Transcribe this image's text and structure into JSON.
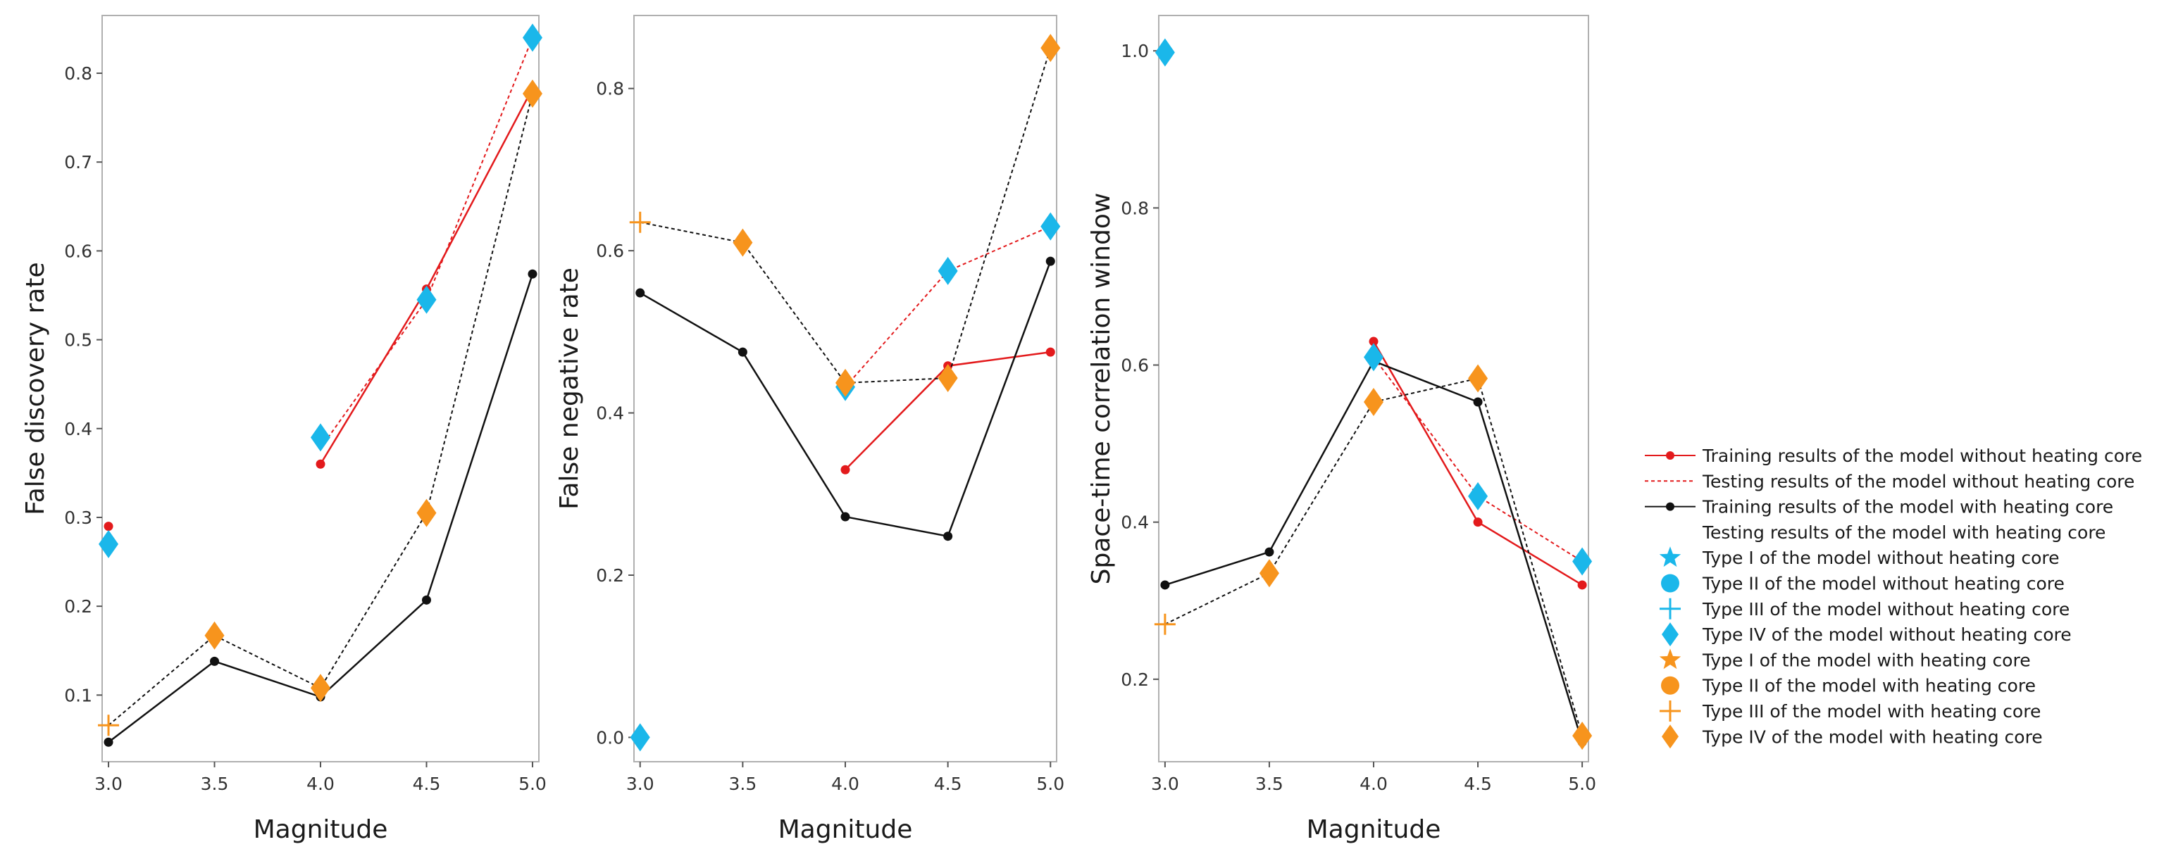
{
  "colors": {
    "red": "#e31a1c",
    "black": "#111111",
    "cyan": "#1ab7ea",
    "orange": "#f7941d",
    "panel_border": "#b0b0b0"
  },
  "chart_data": [
    {
      "type": "line",
      "xlabel": "Magnitude",
      "ylabel": "False discovery rate",
      "x_ticks": [
        "3.0",
        "3.5",
        "4.0",
        "4.5",
        "5.0"
      ],
      "y_ticks": [
        "0.1",
        "0.2",
        "0.3",
        "0.4",
        "0.5",
        "0.6",
        "0.7",
        "0.8"
      ],
      "xlim": [
        2.97,
        5.03
      ],
      "ylim": [
        0.025,
        0.865
      ],
      "series": [
        {
          "name": "Training results of the model without heating core",
          "style": "train-red",
          "x": [
            4.0,
            4.5,
            5.0
          ],
          "y": [
            0.36,
            0.557,
            0.783
          ],
          "isolated": [
            {
              "x": 3.0,
              "y": 0.29
            }
          ]
        },
        {
          "name": "Testing results of the model without heating core",
          "style": "test-red",
          "x": [
            4.0,
            4.5,
            5.0
          ],
          "y": [
            0.378,
            0.545,
            0.84
          ]
        },
        {
          "name": "Training results of the model with heating core",
          "style": "train-black",
          "x": [
            3.0,
            3.5,
            4.0,
            4.5,
            5.0
          ],
          "y": [
            0.047,
            0.138,
            0.098,
            0.207,
            0.574
          ]
        },
        {
          "name": "Testing results of the model with heating core",
          "style": "test-black",
          "x": [
            3.0,
            3.5,
            4.0,
            4.5,
            5.0
          ],
          "y": [
            0.066,
            0.167,
            0.108,
            0.305,
            0.777
          ]
        }
      ],
      "markers": [
        {
          "type": "diamond",
          "color": "cyan",
          "x": 3.0,
          "y": 0.27
        },
        {
          "type": "diamond",
          "color": "cyan",
          "x": 4.0,
          "y": 0.39
        },
        {
          "type": "diamond",
          "color": "cyan",
          "x": 4.5,
          "y": 0.545
        },
        {
          "type": "diamond",
          "color": "cyan",
          "x": 5.0,
          "y": 0.84
        },
        {
          "type": "plus",
          "color": "orange",
          "x": 3.0,
          "y": 0.066
        },
        {
          "type": "diamond",
          "color": "orange",
          "x": 3.5,
          "y": 0.167
        },
        {
          "type": "diamond",
          "color": "orange",
          "x": 4.0,
          "y": 0.108
        },
        {
          "type": "diamond",
          "color": "orange",
          "x": 4.5,
          "y": 0.305
        },
        {
          "type": "diamond",
          "color": "orange",
          "x": 5.0,
          "y": 0.777
        }
      ]
    },
    {
      "type": "line",
      "xlabel": "Magnitude",
      "ylabel": "False negative rate",
      "x_ticks": [
        "3.0",
        "3.5",
        "4.0",
        "4.5",
        "5.0"
      ],
      "y_ticks": [
        "0.0",
        "0.2",
        "0.4",
        "0.6",
        "0.8"
      ],
      "xlim": [
        2.97,
        5.03
      ],
      "ylim": [
        -0.03,
        0.89
      ],
      "series": [
        {
          "name": "Training results of the model without heating core",
          "style": "train-red",
          "x": [
            4.0,
            4.5,
            5.0
          ],
          "y": [
            0.33,
            0.458,
            0.475
          ],
          "isolated": [
            {
              "x": 3.0,
              "y": 0.0
            }
          ]
        },
        {
          "name": "Testing results of the model without heating core",
          "style": "test-red",
          "x": [
            4.0,
            4.5,
            5.0
          ],
          "y": [
            0.432,
            0.575,
            0.63
          ]
        },
        {
          "name": "Training results of the model with heating core",
          "style": "train-black",
          "x": [
            3.0,
            3.5,
            4.0,
            4.5,
            5.0
          ],
          "y": [
            0.548,
            0.475,
            0.272,
            0.248,
            0.587
          ]
        },
        {
          "name": "Testing results of the model with heating core",
          "style": "test-black",
          "x": [
            3.0,
            3.5,
            4.0,
            4.5,
            5.0
          ],
          "y": [
            0.635,
            0.61,
            0.437,
            0.443,
            0.85
          ]
        }
      ],
      "markers": [
        {
          "type": "diamond",
          "color": "cyan",
          "x": 3.0,
          "y": 0.0
        },
        {
          "type": "diamond",
          "color": "cyan",
          "x": 4.0,
          "y": 0.432
        },
        {
          "type": "diamond",
          "color": "cyan",
          "x": 4.5,
          "y": 0.575
        },
        {
          "type": "diamond",
          "color": "cyan",
          "x": 5.0,
          "y": 0.63
        },
        {
          "type": "plus",
          "color": "orange",
          "x": 3.0,
          "y": 0.635
        },
        {
          "type": "diamond",
          "color": "orange",
          "x": 3.5,
          "y": 0.61
        },
        {
          "type": "diamond",
          "color": "orange",
          "x": 4.0,
          "y": 0.437
        },
        {
          "type": "diamond",
          "color": "orange",
          "x": 4.5,
          "y": 0.443
        },
        {
          "type": "diamond",
          "color": "orange",
          "x": 5.0,
          "y": 0.85
        }
      ]
    },
    {
      "type": "line",
      "xlabel": "Magnitude",
      "ylabel": "Space-time correlation window",
      "x_ticks": [
        "3.0",
        "3.5",
        "4.0",
        "4.5",
        "5.0"
      ],
      "y_ticks": [
        "0.2",
        "0.4",
        "0.6",
        "0.8",
        "1.0"
      ],
      "xlim": [
        2.97,
        5.03
      ],
      "ylim": [
        0.095,
        1.045
      ],
      "series": [
        {
          "name": "Training results of the model without heating core",
          "style": "train-red",
          "x": [
            3.0,
            4.0,
            4.5,
            5.0
          ],
          "y": [
            0.998,
            0.63,
            0.4,
            0.32
          ],
          "line_from": 1
        },
        {
          "name": "Testing results of the model without heating core",
          "style": "test-red",
          "x": [
            4.0,
            4.5,
            5.0
          ],
          "y": [
            0.61,
            0.433,
            0.35
          ]
        },
        {
          "name": "Training results of the model with heating core",
          "style": "train-black",
          "x": [
            3.0,
            3.5,
            4.0,
            4.5,
            5.0
          ],
          "y": [
            0.32,
            0.362,
            0.605,
            0.553,
            0.12
          ]
        },
        {
          "name": "Testing results of the model with heating core",
          "style": "test-black",
          "x": [
            3.0,
            3.5,
            4.0,
            4.5,
            5.0
          ],
          "y": [
            0.27,
            0.335,
            0.553,
            0.583,
            0.128
          ]
        }
      ],
      "markers": [
        {
          "type": "diamond",
          "color": "cyan",
          "x": 3.0,
          "y": 0.998
        },
        {
          "type": "diamond",
          "color": "cyan",
          "x": 4.0,
          "y": 0.61
        },
        {
          "type": "diamond",
          "color": "cyan",
          "x": 4.5,
          "y": 0.433
        },
        {
          "type": "diamond",
          "color": "cyan",
          "x": 5.0,
          "y": 0.35
        },
        {
          "type": "plus",
          "color": "orange",
          "x": 3.0,
          "y": 0.27
        },
        {
          "type": "diamond",
          "color": "orange",
          "x": 3.5,
          "y": 0.335
        },
        {
          "type": "diamond",
          "color": "orange",
          "x": 4.0,
          "y": 0.553
        },
        {
          "type": "diamond",
          "color": "orange",
          "x": 4.5,
          "y": 0.583
        },
        {
          "type": "diamond",
          "color": "orange",
          "x": 5.0,
          "y": 0.128
        }
      ]
    }
  ],
  "legend": {
    "placement": "right",
    "entries": [
      {
        "label": "Training results of the model without heating core",
        "symbol": "line-dot",
        "color": "red"
      },
      {
        "label": "Testing results of the model without heating core",
        "symbol": "dashed-line",
        "color": "red"
      },
      {
        "label": "Training results of the model with heating core",
        "symbol": "line-dot",
        "color": "black"
      },
      {
        "label": "Testing results of the model with heating core",
        "symbol": "dashed-line",
        "color": "black"
      },
      {
        "label": "Type I of the model without heating core",
        "symbol": "star",
        "color": "cyan"
      },
      {
        "label": "Type II of the model without heating core",
        "symbol": "circle",
        "color": "cyan"
      },
      {
        "label": "Type III of the model without heating core",
        "symbol": "plus",
        "color": "cyan"
      },
      {
        "label": "Type IV of the model without heating core",
        "symbol": "diamond",
        "color": "cyan"
      },
      {
        "label": "Type I of the model with heating core",
        "symbol": "star",
        "color": "orange"
      },
      {
        "label": "Type II of the model with heating core",
        "symbol": "circle",
        "color": "orange"
      },
      {
        "label": "Type III of the model with heating core",
        "symbol": "plus",
        "color": "orange"
      },
      {
        "label": "Type IV of the model with heating core",
        "symbol": "diamond",
        "color": "orange"
      }
    ]
  }
}
